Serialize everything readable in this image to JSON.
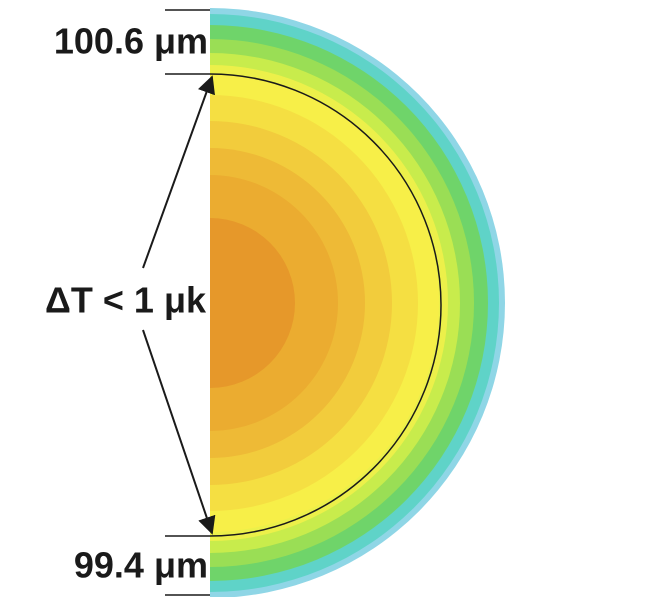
{
  "labels": {
    "top": "100.6 μm",
    "middle": "ΔT < 1 μk",
    "bottom": "99.4 μm"
  }
}
